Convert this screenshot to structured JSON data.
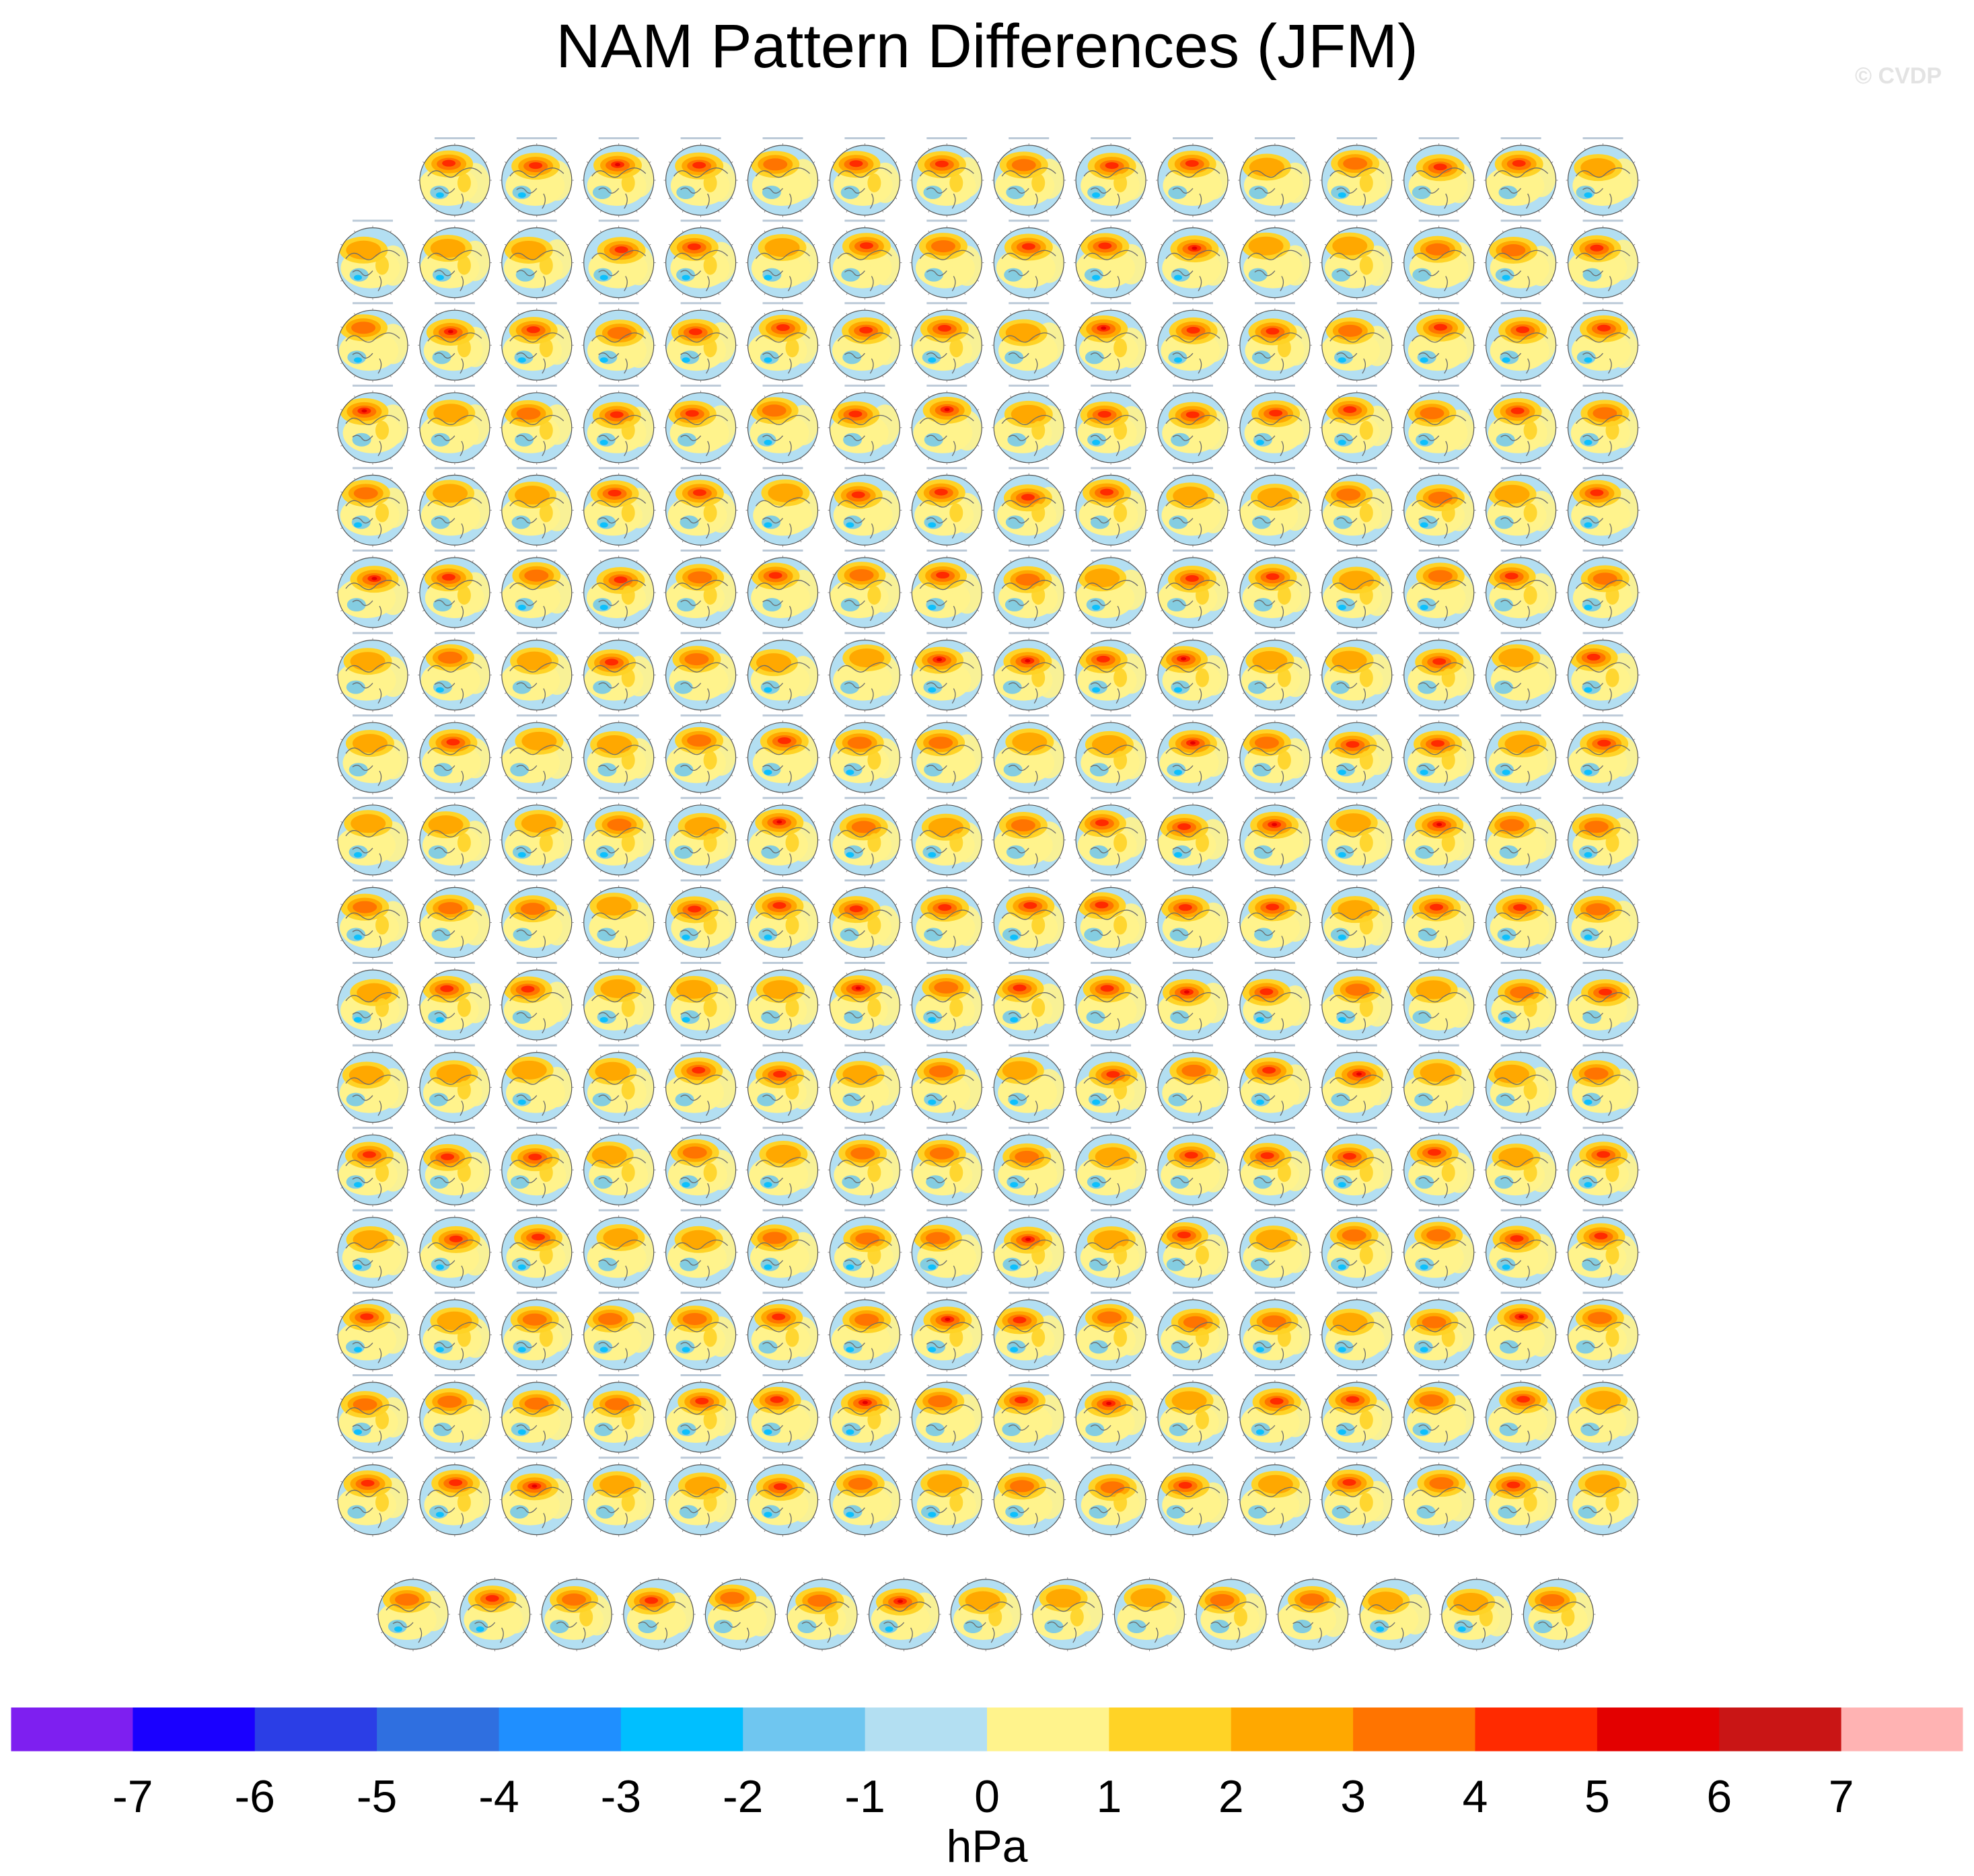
{
  "title": "NAM Pattern Differences (JFM)",
  "watermark": "© CVDP",
  "chart_data": {
    "type": "heatmap",
    "title": "NAM Pattern Differences (JFM)",
    "description_panels": "small-multiples grid of polar-stereographic Northern Hemisphere maps",
    "panel_rows": [
      15,
      16,
      16,
      16,
      16,
      16,
      16,
      16,
      16,
      16,
      16,
      16,
      16,
      16,
      16,
      16,
      16,
      15
    ],
    "panel_count": 286,
    "colorbar": {
      "label": "hPa",
      "ticks": [
        -7,
        -6,
        -5,
        -4,
        -3,
        -2,
        -1,
        0,
        1,
        2,
        3,
        4,
        5,
        6,
        7
      ],
      "colors": [
        "#7e1ff0",
        "#1a00ff",
        "#2b3ee6",
        "#2f6fe0",
        "#1f8fff",
        "#00bfff",
        "#6fc6f0",
        "#b3dff2",
        "#fff38c",
        "#ffd326",
        "#ffa800",
        "#ff7400",
        "#ff2a00",
        "#e30000",
        "#c91515",
        "#ffb3b3"
      ],
      "orientation": "horizontal",
      "placement": "bottom"
    }
  }
}
